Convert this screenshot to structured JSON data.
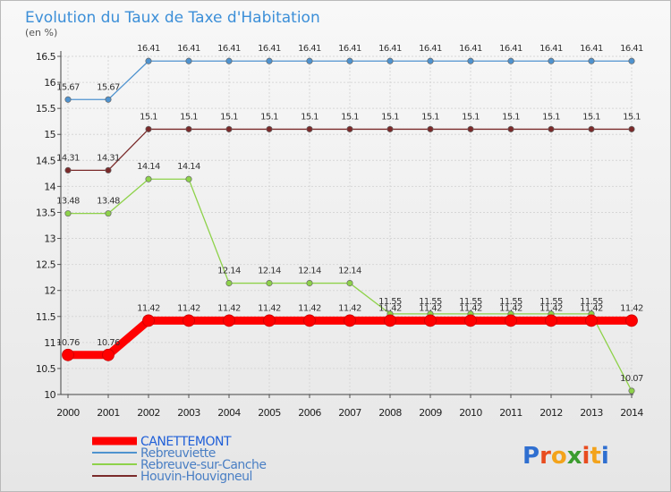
{
  "chart_data": {
    "type": "line",
    "title": "Evolution du Taux de Taxe d'Habitation",
    "ylabel": "(en %)",
    "xlabel": "",
    "x": [
      "2000",
      "2001",
      "2002",
      "2003",
      "2004",
      "2005",
      "2006",
      "2007",
      "2008",
      "2009",
      "2010",
      "2011",
      "2012",
      "2013",
      "2014"
    ],
    "ylim": [
      10,
      16.5
    ],
    "yticks": [
      "10",
      "10.5",
      "11",
      "11.5",
      "12",
      "12.5",
      "13",
      "13.5",
      "14",
      "14.5",
      "15",
      "15.5",
      "16",
      "16.5"
    ],
    "grid": true,
    "legend_position": "bottom-left",
    "series": [
      {
        "name": "CANETTEMONT",
        "color": "#ff0000",
        "emphasis": "thick",
        "values": [
          10.76,
          10.76,
          11.42,
          11.42,
          11.42,
          11.42,
          11.42,
          11.42,
          11.42,
          11.42,
          11.42,
          11.42,
          11.42,
          11.42,
          11.42
        ],
        "labels": [
          "10.76",
          "10.76",
          "11.42",
          "11.42",
          "11.42",
          "11.42",
          "11.42",
          "11.42",
          "11.42",
          "11.42",
          "11.42",
          "11.42",
          "11.42",
          "11.42",
          "11.42"
        ]
      },
      {
        "name": "Rebreuviette",
        "color": "#4f93cf",
        "emphasis": "thin",
        "values": [
          15.67,
          15.67,
          16.41,
          16.41,
          16.41,
          16.41,
          16.41,
          16.41,
          16.41,
          16.41,
          16.41,
          16.41,
          16.41,
          16.41,
          16.41
        ],
        "labels": [
          "15.67",
          "15.67",
          "16.41",
          "16.41",
          "16.41",
          "16.41",
          "16.41",
          "16.41",
          "16.41",
          "16.41",
          "16.41",
          "16.41",
          "16.41",
          "16.41",
          "16.41"
        ]
      },
      {
        "name": "Rebreuve-sur-Canche",
        "color": "#8ed24a",
        "emphasis": "thin",
        "values": [
          13.48,
          13.48,
          14.14,
          14.14,
          12.14,
          12.14,
          12.14,
          12.14,
          11.55,
          11.55,
          11.55,
          11.55,
          11.55,
          11.55,
          10.07
        ],
        "labels": [
          "13.48",
          "13.48",
          "14.14",
          "14.14",
          "12.14",
          "12.14",
          "12.14",
          "12.14",
          "11.55",
          "11.55",
          "11.55",
          "11.55",
          "11.55",
          "11.55",
          "10.07"
        ]
      },
      {
        "name": "Houvin-Houvigneul",
        "color": "#7a2a2a",
        "emphasis": "thin",
        "values": [
          14.31,
          14.31,
          15.1,
          15.1,
          15.1,
          15.1,
          15.1,
          15.1,
          15.1,
          15.1,
          15.1,
          15.1,
          15.1,
          15.1,
          15.1
        ],
        "labels": [
          "14.31",
          "14.31",
          "15.1",
          "15.1",
          "15.1",
          "15.1",
          "15.1",
          "15.1",
          "15.1",
          "15.1",
          "15.1",
          "15.1",
          "15.1",
          "15.1",
          "15.1"
        ]
      }
    ]
  },
  "branding": {
    "text": "Proxiti"
  }
}
